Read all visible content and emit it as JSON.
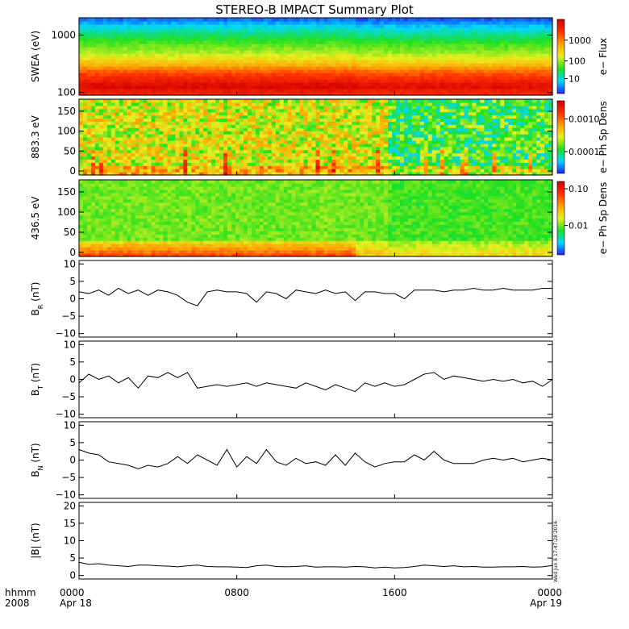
{
  "title": "STEREO-B IMPACT Summary Plot",
  "colors": {
    "spectrogram_ramp": [
      "#2020ff",
      "#00d8ff",
      "#20e020",
      "#e8f020",
      "#ffa000",
      "#ff3000",
      "#d00000"
    ],
    "line": "#000000",
    "frame": "#000000",
    "background": "#ffffff"
  },
  "x_axis": {
    "row1_label": "hhmm",
    "row2_label": "2008",
    "ticks": [
      {
        "time": "0000",
        "date": "Apr 18"
      },
      {
        "time": "0800",
        "date": ""
      },
      {
        "time": "1600",
        "date": ""
      },
      {
        "time": "0000",
        "date": "Apr 19"
      }
    ]
  },
  "timestamp": "Wed Jun 8 17:47:28 2016",
  "chart_data": [
    {
      "type": "heatmap",
      "ylabel": "SWEA (eV)",
      "ytick_labels": [
        "1000",
        "100"
      ],
      "yscale": "log",
      "ylim": [
        90,
        2000
      ],
      "colorbar": {
        "label": "e− Flux",
        "tick_labels": [
          "1000",
          "100",
          "10"
        ],
        "scale": "log"
      },
      "energy_profile": [
        [
          100,
          0.88
        ],
        [
          130,
          0.98
        ],
        [
          160,
          0.9
        ],
        [
          230,
          0.78
        ],
        [
          320,
          0.6
        ],
        [
          480,
          0.46
        ],
        [
          700,
          0.38
        ],
        [
          1000,
          0.28
        ],
        [
          1500,
          0.16
        ],
        [
          2000,
          0.05
        ]
      ]
    },
    {
      "type": "heatmap",
      "ylabel": "883.3 eV",
      "ytick_labels": [
        "150",
        "100",
        "50",
        "0"
      ],
      "ylim": [
        -10,
        180
      ],
      "colorbar": {
        "label": "e− Ph Sp Dens",
        "tick_labels": [
          "0.0010",
          "0.0001"
        ],
        "scale": "log"
      }
    },
    {
      "type": "heatmap",
      "ylabel": "436.5 eV",
      "ytick_labels": [
        "150",
        "100",
        "50",
        "0"
      ],
      "ylim": [
        -10,
        180
      ],
      "colorbar": {
        "label": "e− Ph Sp Dens",
        "tick_labels": [
          "0.10",
          "0.01"
        ],
        "scale": "log"
      }
    },
    {
      "type": "line",
      "ylabel": "B_R (nT)",
      "ytick_labels": [
        "10",
        "5",
        "0",
        "−5",
        "−10"
      ],
      "ylim": [
        -11,
        11
      ],
      "x_hours": [
        0,
        0.5,
        1,
        1.5,
        2,
        2.5,
        3,
        3.5,
        4,
        4.5,
        5,
        5.5,
        6,
        6.5,
        7,
        7.5,
        8,
        8.5,
        9,
        9.5,
        10,
        10.5,
        11,
        11.5,
        12,
        12.5,
        13,
        13.5,
        14,
        14.5,
        15,
        15.5,
        16,
        16.5,
        17,
        17.5,
        18,
        18.5,
        19,
        19.5,
        20,
        20.5,
        21,
        21.5,
        22,
        22.5,
        23,
        23.5,
        24
      ],
      "values": [
        2,
        1.5,
        2.5,
        1,
        3,
        1.5,
        2.5,
        1,
        2.5,
        2,
        1,
        -1,
        -2,
        2,
        2.5,
        2,
        2,
        1.5,
        -1,
        2,
        1.5,
        0,
        2.5,
        2,
        1.5,
        2.5,
        1.5,
        2,
        -0.5,
        2,
        2,
        1.5,
        1.5,
        0,
        2.5,
        2.5,
        2.5,
        2,
        2.5,
        2.5,
        3,
        2.5,
        2.5,
        3,
        2.5,
        2.5,
        2.5,
        3,
        3
      ]
    },
    {
      "type": "line",
      "ylabel": "B_T (nT)",
      "ytick_labels": [
        "10",
        "5",
        "0",
        "−5",
        "−10"
      ],
      "ylim": [
        -11,
        11
      ],
      "x_hours": [
        0,
        0.5,
        1,
        1.5,
        2,
        2.5,
        3,
        3.5,
        4,
        4.5,
        5,
        5.5,
        6,
        6.5,
        7,
        7.5,
        8,
        8.5,
        9,
        9.5,
        10,
        10.5,
        11,
        11.5,
        12,
        12.5,
        13,
        13.5,
        14,
        14.5,
        15,
        15.5,
        16,
        16.5,
        17,
        17.5,
        18,
        18.5,
        19,
        19.5,
        20,
        20.5,
        21,
        21.5,
        22,
        22.5,
        23,
        23.5,
        24
      ],
      "values": [
        -1,
        1.5,
        0,
        1,
        -1,
        0.5,
        -2.5,
        1,
        0.5,
        2,
        0.5,
        2,
        -2.5,
        -2,
        -1.5,
        -2,
        -1.5,
        -1,
        -2,
        -1,
        -1.5,
        -2,
        -2.5,
        -1,
        -2,
        -3,
        -1.5,
        -2.5,
        -3.5,
        -1,
        -2,
        -1,
        -2,
        -1.5,
        0,
        1.5,
        2,
        0,
        1,
        0.5,
        0,
        -0.5,
        0,
        -0.5,
        0,
        -1,
        -0.5,
        -2,
        0
      ]
    },
    {
      "type": "line",
      "ylabel": "B_N (nT)",
      "ytick_labels": [
        "10",
        "5",
        "0",
        "−5",
        "−10"
      ],
      "ylim": [
        -11,
        11
      ],
      "x_hours": [
        0,
        0.5,
        1,
        1.5,
        2,
        2.5,
        3,
        3.5,
        4,
        4.5,
        5,
        5.5,
        6,
        6.5,
        7,
        7.5,
        8,
        8.5,
        9,
        9.5,
        10,
        10.5,
        11,
        11.5,
        12,
        12.5,
        13,
        13.5,
        14,
        14.5,
        15,
        15.5,
        16,
        16.5,
        17,
        17.5,
        18,
        18.5,
        19,
        19.5,
        20,
        20.5,
        21,
        21.5,
        22,
        22.5,
        23,
        23.5,
        24
      ],
      "values": [
        3,
        2,
        1.5,
        -0.5,
        -1,
        -1.5,
        -2.5,
        -1.5,
        -2,
        -1,
        1,
        -1,
        1.5,
        0,
        -1.5,
        3,
        -2,
        1,
        -1,
        3,
        -0.5,
        -1.5,
        0.5,
        -1,
        -0.5,
        -1.5,
        1.5,
        -1.5,
        2,
        -0.5,
        -2,
        -1,
        -0.5,
        -0.5,
        1.5,
        0,
        2.5,
        0,
        -1,
        -1,
        -1,
        0,
        0.5,
        0,
        0.5,
        -0.5,
        0,
        0.5,
        0
      ]
    },
    {
      "type": "line",
      "ylabel": "|B| (nT)",
      "ytick_labels": [
        "20",
        "15",
        "10",
        "5",
        "0"
      ],
      "ylim": [
        -1,
        21
      ],
      "x_hours": [
        0,
        0.5,
        1,
        1.5,
        2,
        2.5,
        3,
        3.5,
        4,
        4.5,
        5,
        5.5,
        6,
        6.5,
        7,
        7.5,
        8,
        8.5,
        9,
        9.5,
        10,
        10.5,
        11,
        11.5,
        12,
        12.5,
        13,
        13.5,
        14,
        14.5,
        15,
        15.5,
        16,
        16.5,
        17,
        17.5,
        18,
        18.5,
        19,
        19.5,
        20,
        20.5,
        21,
        21.5,
        22,
        22.5,
        23,
        23.5,
        24
      ],
      "values": [
        3.8,
        3.2,
        3.4,
        3,
        2.8,
        2.6,
        3,
        3,
        2.8,
        2.7,
        2.5,
        2.8,
        3,
        2.6,
        2.5,
        2.5,
        2.4,
        2.3,
        2.8,
        3,
        2.6,
        2.5,
        2.6,
        2.8,
        2.4,
        2.5,
        2.5,
        2.4,
        2.6,
        2.5,
        2.2,
        2.4,
        2.2,
        2.3,
        2.6,
        3,
        2.8,
        2.6,
        2.8,
        2.5,
        2.6,
        2.4,
        2.4,
        2.5,
        2.5,
        2.6,
        2.4,
        2.5,
        2.9
      ]
    }
  ]
}
